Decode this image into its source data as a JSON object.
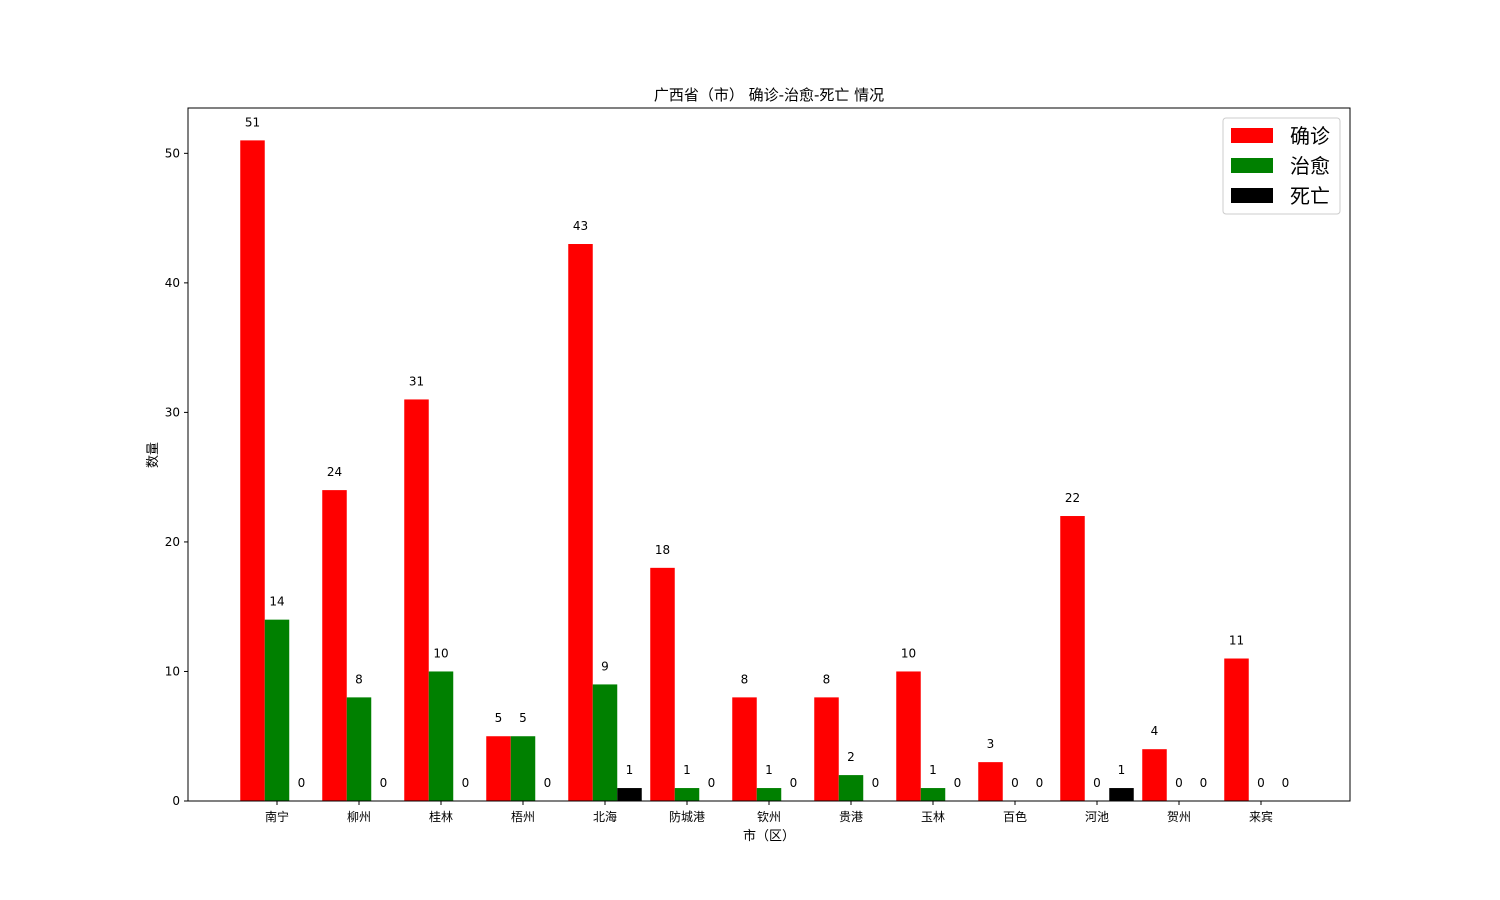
{
  "chart_data": {
    "type": "bar",
    "title": "广西省（市） 确诊-治愈-死亡 情况",
    "xlabel": "市（区）",
    "ylabel": "数量",
    "ylim": [
      0,
      53.5
    ],
    "yticks": [
      0,
      10,
      20,
      30,
      40,
      50
    ],
    "grid": false,
    "legend_position": "top-right",
    "categories": [
      "南宁",
      "柳州",
      "桂林",
      "梧州",
      "北海",
      "防城港",
      "钦州",
      "贵港",
      "玉林",
      "百色",
      "河池",
      "贺州",
      "来宾"
    ],
    "series": [
      {
        "name": "确诊",
        "color": "#ff0000",
        "values": [
          51,
          24,
          31,
          5,
          43,
          18,
          8,
          8,
          10,
          3,
          22,
          4,
          11
        ]
      },
      {
        "name": "治愈",
        "color": "#008000",
        "values": [
          14,
          8,
          10,
          5,
          9,
          1,
          1,
          2,
          1,
          0,
          0,
          0,
          0
        ]
      },
      {
        "name": "死亡",
        "color": "#000000",
        "values": [
          0,
          0,
          0,
          0,
          1,
          0,
          0,
          0,
          0,
          0,
          1,
          0,
          0
        ]
      }
    ]
  }
}
